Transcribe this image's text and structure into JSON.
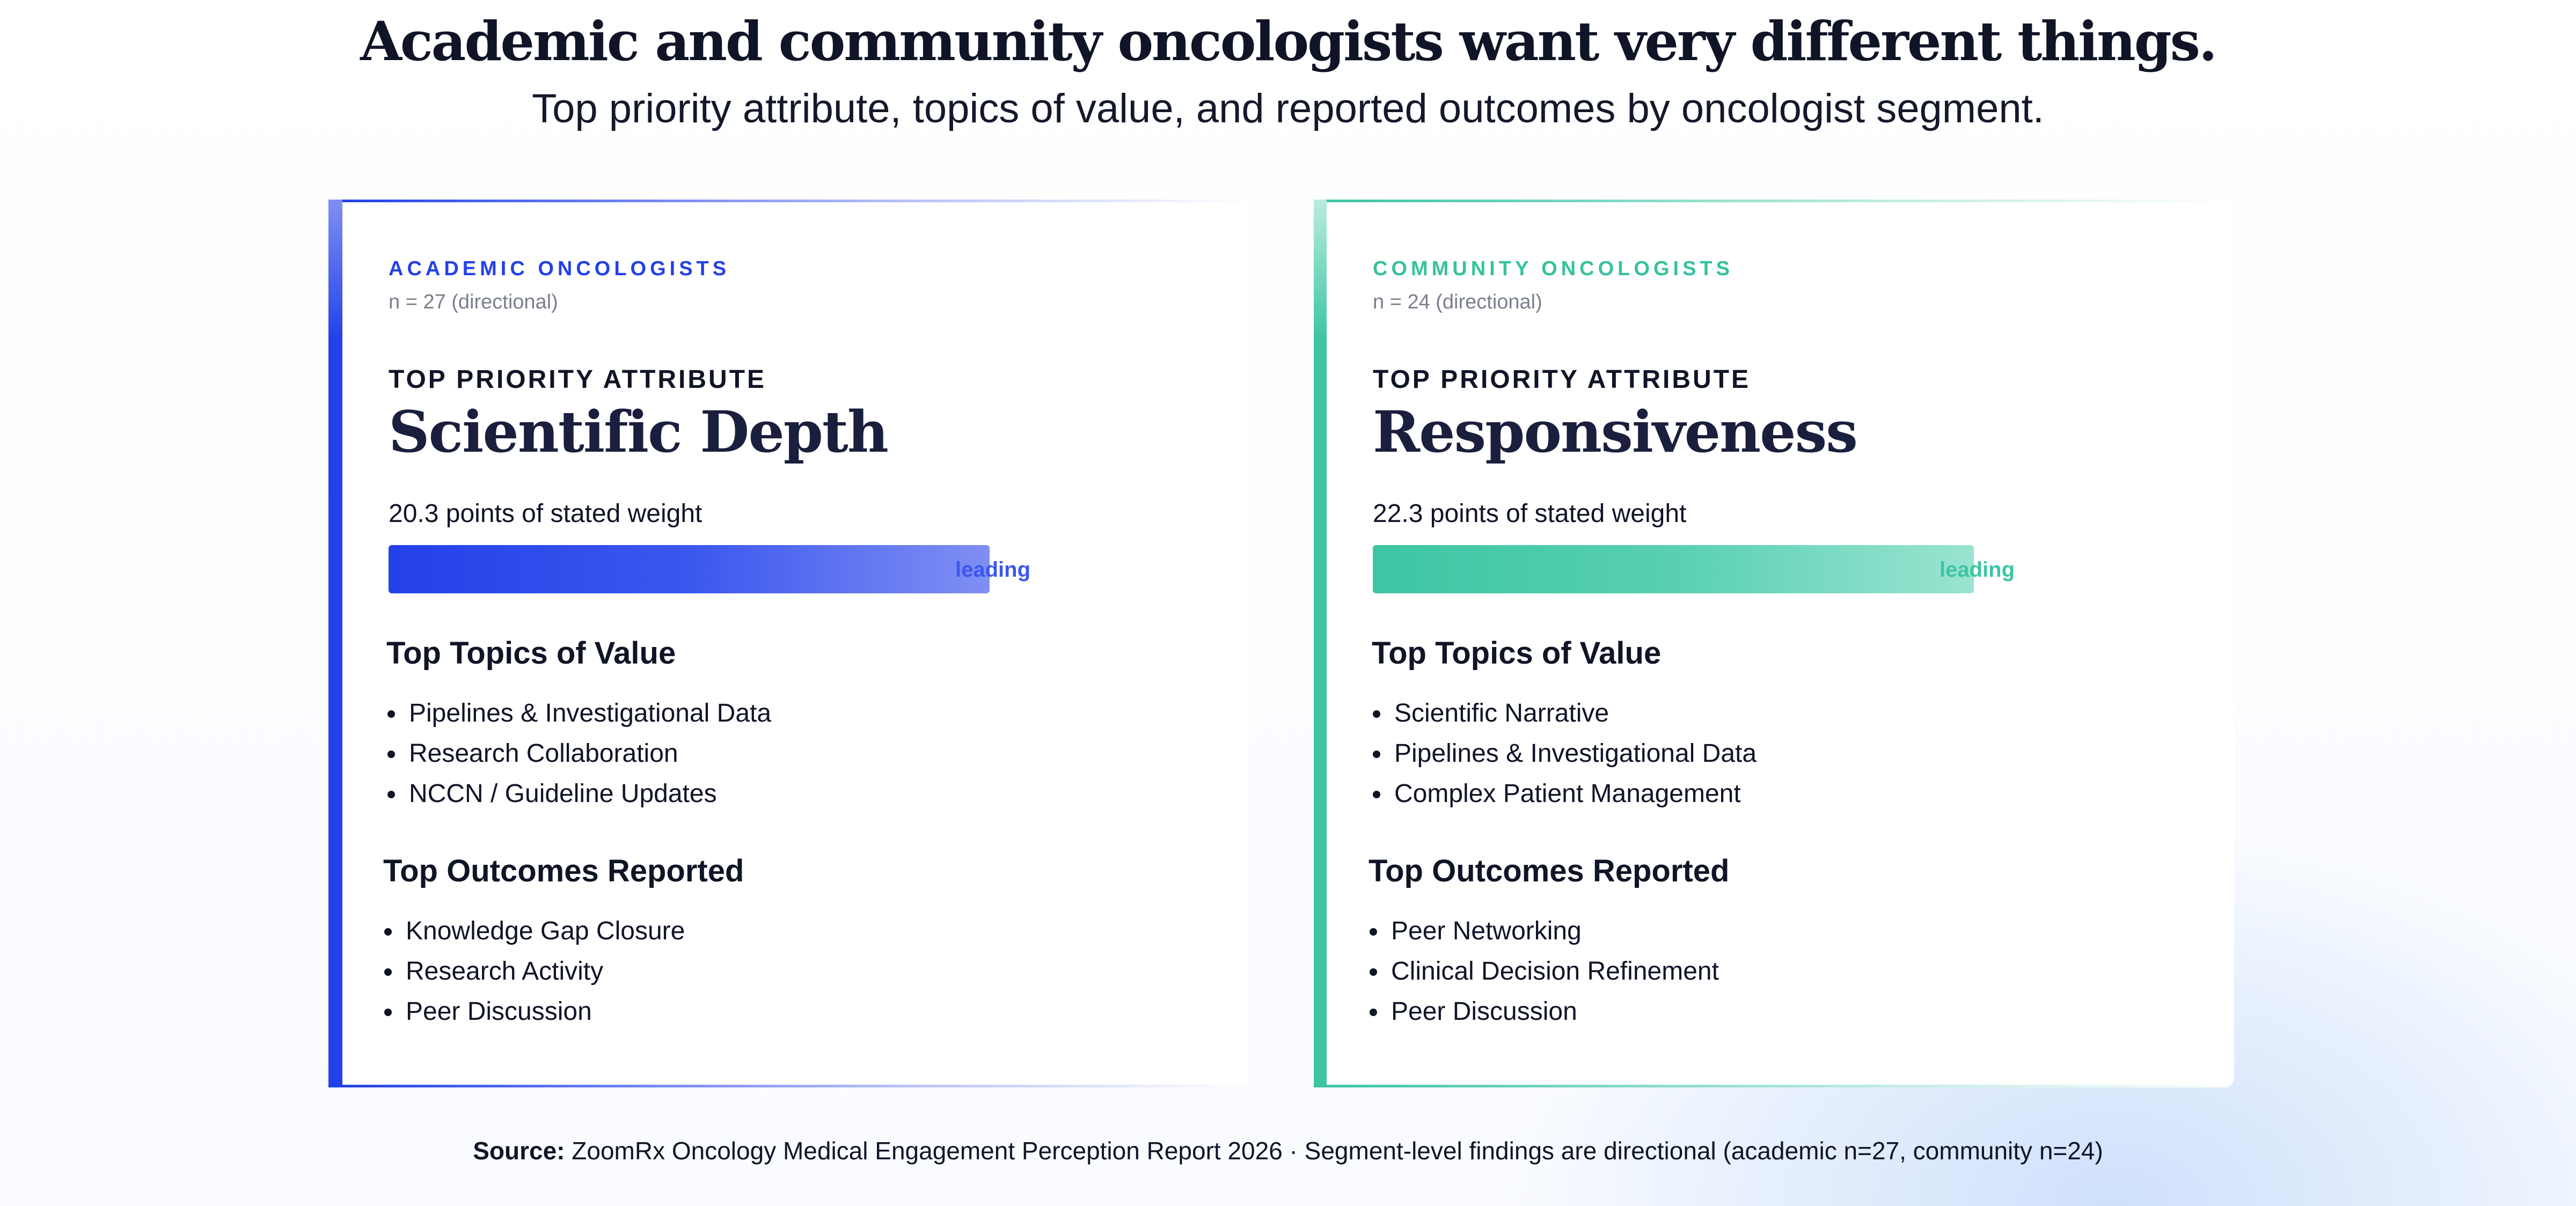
{
  "header": {
    "title": "Academic and community oncologists want very different things.",
    "subtitle": "Top priority attribute, topics of value, and reported outcomes by oncologist segment."
  },
  "colors": {
    "academic_accent": "#2341e8",
    "community_accent": "#3dc5a3"
  },
  "segments": [
    {
      "label": "ACADEMIC ONCOLOGISTS",
      "n_text": "n = 27 (directional)",
      "attribute_label": "TOP PRIORITY ATTRIBUTE",
      "attribute_value": "Scientific Depth",
      "weight_text": "20.3 points of stated weight",
      "weight_points": 20.3,
      "bar_tag": "leading",
      "topics_heading": "Top Topics of Value",
      "topics": [
        "Pipelines & Investigational Data",
        "Research Collaboration",
        "NCCN / Guideline Updates"
      ],
      "outcomes_heading": "Top Outcomes Reported",
      "outcomes": [
        "Knowledge Gap Closure",
        "Research Activity",
        "Peer Discussion"
      ]
    },
    {
      "label": "COMMUNITY ONCOLOGISTS",
      "n_text": "n = 24 (directional)",
      "attribute_label": "TOP PRIORITY ATTRIBUTE",
      "attribute_value": "Responsiveness",
      "weight_text": "22.3 points of stated weight",
      "weight_points": 22.3,
      "bar_tag": "leading",
      "topics_heading": "Top Topics of Value",
      "topics": [
        "Scientific Narrative",
        "Pipelines & Investigational Data",
        "Complex Patient Management"
      ],
      "outcomes_heading": "Top Outcomes Reported",
      "outcomes": [
        "Peer Networking",
        "Clinical Decision Refinement",
        "Peer Discussion"
      ]
    }
  ],
  "footer": {
    "source_label": "Source:",
    "source_text": "ZoomRx Oncology Medical Engagement Perception Report 2026 · Segment-level findings are directional (academic n=27, community n=24)"
  }
}
